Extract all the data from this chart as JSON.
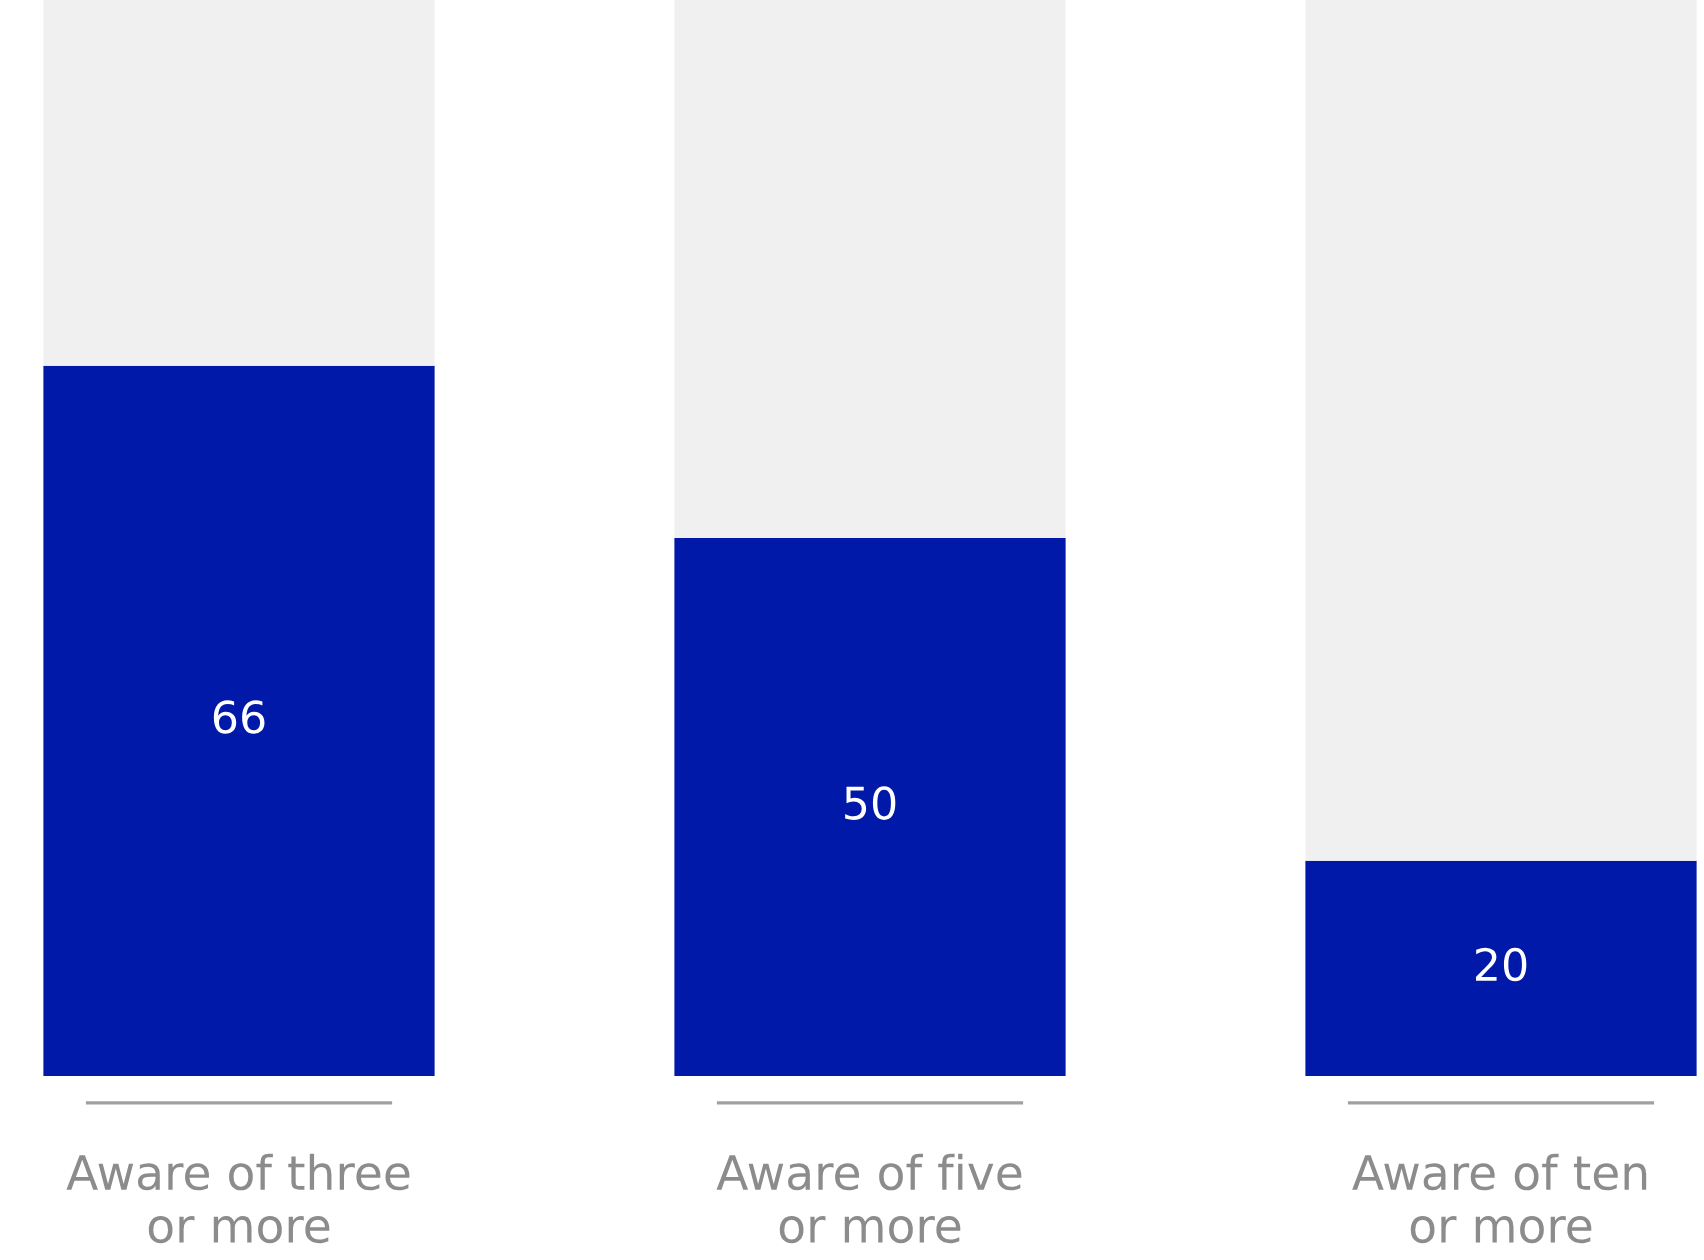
{
  "chart_data": {
    "type": "bar",
    "stacked": true,
    "categories": [
      "Aware of three\nor more",
      "Aware of five\nor more",
      "Aware of ten\nor more"
    ],
    "series": [
      {
        "color": "#0019a8",
        "values": [
          66,
          50,
          20
        ],
        "value_labels": [
          "66",
          "50",
          "20"
        ]
      },
      {
        "color": "#f0f0f0",
        "values": [
          34,
          50,
          80
        ]
      }
    ],
    "legend": false,
    "grid": false
  }
}
